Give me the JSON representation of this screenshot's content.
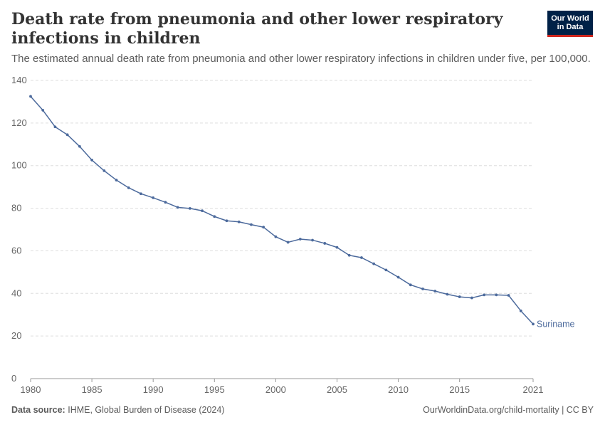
{
  "header": {
    "title": "Death rate from pneumonia and other lower respiratory infections in children",
    "subtitle": "The estimated annual death rate from pneumonia and other lower respiratory infections in children under five, per 100,000.",
    "logo_line1": "Our World",
    "logo_line2": "in Data"
  },
  "footer": {
    "source_label": "Data source:",
    "source_text": "IHME, Global Burden of Disease (2024)",
    "credit": "OurWorldinData.org/child-mortality | CC BY"
  },
  "colors": {
    "series": "#4c6a9c",
    "grid": "#dddddd",
    "logo_bg": "#002147",
    "logo_accent": "#ce261e"
  },
  "chart_data": {
    "type": "line",
    "xlim": [
      1980,
      2021
    ],
    "ylim": [
      0,
      140
    ],
    "yticks": [
      0,
      20,
      40,
      60,
      80,
      100,
      120,
      140
    ],
    "xticks": [
      1980,
      1985,
      1990,
      1995,
      2000,
      2005,
      2010,
      2015,
      2021
    ],
    "grid": "horizontal-dashed",
    "series": [
      {
        "name": "Suriname",
        "x": [
          1980,
          1981,
          1982,
          1983,
          1984,
          1985,
          1986,
          1987,
          1988,
          1989,
          1990,
          1991,
          1992,
          1993,
          1994,
          1995,
          1996,
          1997,
          1998,
          1999,
          2000,
          2001,
          2002,
          2003,
          2004,
          2005,
          2006,
          2007,
          2008,
          2009,
          2010,
          2011,
          2012,
          2013,
          2014,
          2015,
          2016,
          2017,
          2018,
          2019,
          2020,
          2021
        ],
        "values": [
          132.5,
          126,
          118.2,
          114.5,
          109,
          102.6,
          97.6,
          93.2,
          89.6,
          86.8,
          84.9,
          82.8,
          80.4,
          79.9,
          78.8,
          76.1,
          74.1,
          73.6,
          72.3,
          71.1,
          66.6,
          64,
          65.5,
          65,
          63.5,
          61.6,
          57.9,
          56.8,
          53.9,
          51,
          47.6,
          44,
          42.1,
          41.1,
          39.6,
          38.4,
          37.9,
          39.3,
          39.3,
          39.1,
          31.8,
          25.6
        ]
      }
    ]
  }
}
